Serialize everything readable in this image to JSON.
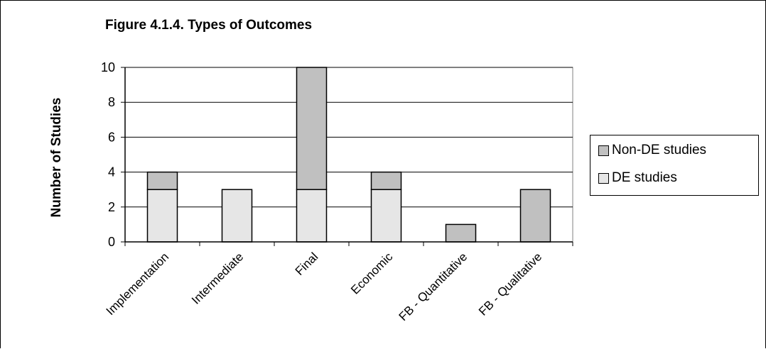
{
  "title": "Figure 4.1.4. Types of Outcomes",
  "colors": {
    "nonde": "#c0c0c0",
    "de": "#e6e6e6",
    "plot_bg": "#ffffff",
    "stroke": "#000000"
  },
  "chart_data": {
    "type": "bar",
    "stacked": true,
    "title": "Figure 4.1.4. Types of Outcomes",
    "xlabel": "",
    "ylabel": "Number of Studies",
    "ylim": [
      0,
      10
    ],
    "yticks": [
      0,
      2,
      4,
      6,
      8,
      10
    ],
    "grid": true,
    "legend_position": "right",
    "categories": [
      "Implementation",
      "Intermediate",
      "Final",
      "Economic",
      "FB - Quantitative",
      "FB - Qualitative"
    ],
    "series": [
      {
        "name": "DE studies",
        "values": [
          3,
          3,
          3,
          3,
          0,
          0
        ],
        "color": "#e6e6e6"
      },
      {
        "name": "Non-DE studies",
        "values": [
          1,
          0,
          7,
          1,
          1,
          3
        ],
        "color": "#c0c0c0"
      }
    ]
  },
  "legend": {
    "items": [
      {
        "label": "Non-DE studies",
        "color": "#c0c0c0"
      },
      {
        "label": "DE studies",
        "color": "#e6e6e6"
      }
    ]
  }
}
